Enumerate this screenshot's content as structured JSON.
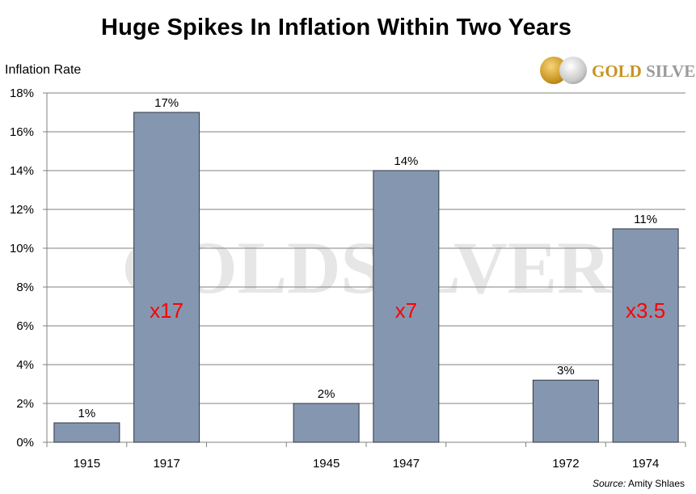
{
  "title": "Huge Spikes In Inflation Within Two Years",
  "logo": {
    "text_gold": "GOLD",
    "text_silver": "SILVER",
    "watermark": "GOLDSILVER"
  },
  "source": {
    "label": "Source:",
    "value": "Amity Shlaes"
  },
  "colors": {
    "bar_fill": "#8597b0",
    "bar_stroke": "#2f3640",
    "grid": "#808080",
    "multiplier": "#ff0000",
    "logo_gold": "#c8931f",
    "logo_silver": "#9a9a9a"
  },
  "chart_data": {
    "type": "bar",
    "title": "Huge Spikes In Inflation Within Two Years",
    "ylabel": "Inflation Rate",
    "xlabel": "",
    "ylim": [
      0,
      18
    ],
    "yticks": [
      0,
      2,
      4,
      6,
      8,
      10,
      12,
      14,
      16,
      18
    ],
    "ytick_labels": [
      "0%",
      "2%",
      "4%",
      "6%",
      "8%",
      "10%",
      "12%",
      "14%",
      "16%",
      "18%"
    ],
    "grid": true,
    "categories": [
      "1915",
      "1917",
      "",
      "1945",
      "1947",
      "",
      "1972",
      "1974"
    ],
    "values": [
      1,
      17,
      null,
      2,
      14,
      null,
      3.2,
      11
    ],
    "data_labels": [
      "1%",
      "17%",
      "",
      "2%",
      "14%",
      "",
      "3%",
      "11%"
    ],
    "annotations": [
      {
        "category": "1917",
        "text": "x17",
        "y": 6.8
      },
      {
        "category": "1947",
        "text": "x7",
        "y": 6.8
      },
      {
        "category": "1974",
        "text": "x3.5",
        "y": 6.8
      }
    ]
  }
}
